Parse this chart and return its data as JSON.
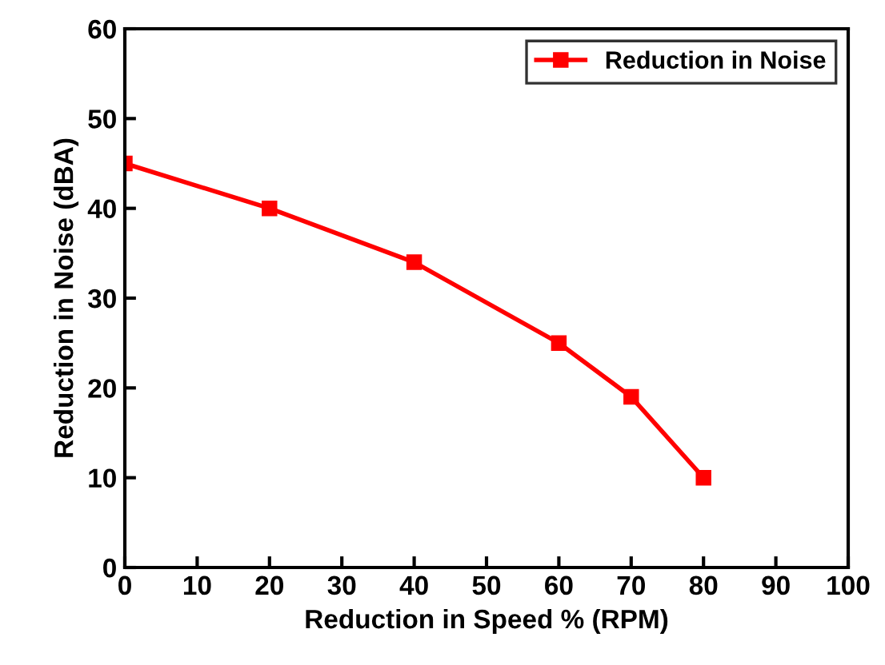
{
  "chart_data": {
    "type": "line",
    "xlabel": "Reduction in Speed % (RPM)",
    "ylabel": "Reduction in Noise (dBA)",
    "x": [
      0,
      20,
      40,
      60,
      70,
      80
    ],
    "series": [
      {
        "name": "Reduction in Noise",
        "color": "#ff0000",
        "values": [
          45,
          40,
          34,
          25,
          19,
          10
        ]
      }
    ],
    "xlim": [
      0,
      100
    ],
    "xticks": [
      0,
      10,
      20,
      30,
      40,
      50,
      60,
      70,
      80,
      90,
      100
    ],
    "ylim": [
      0,
      60
    ],
    "yticks": [
      0,
      10,
      20,
      30,
      40,
      50,
      60
    ],
    "marker": "square",
    "line_style": "solid",
    "legend": "top right",
    "grid": false
  }
}
